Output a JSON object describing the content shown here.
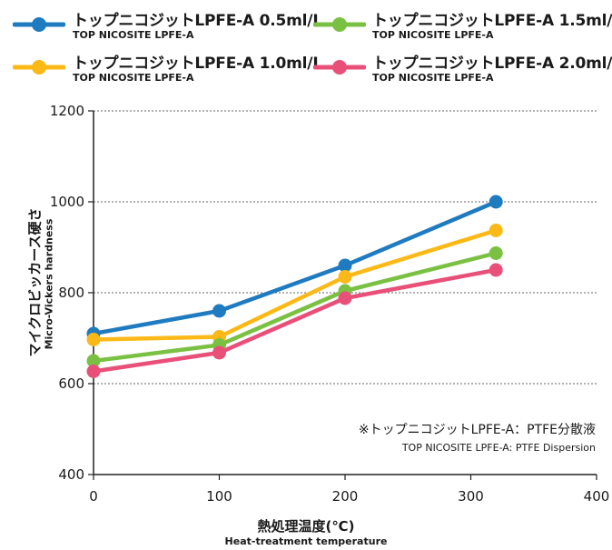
{
  "legend": [
    {
      "title": "トップニコジットLPFE-A 0.5ml/L",
      "subtitle": "TOP NICOSITE LPFE-A",
      "color": "#1f7bc0"
    },
    {
      "title": "トップニコジットLPFE-A 1.5ml/L",
      "subtitle": "TOP NICOSITE LPFE-A",
      "color": "#7ac143"
    },
    {
      "title": "トップニコジットLPFE-A 1.0ml/L",
      "subtitle": "TOP NICOSITE LPFE-A",
      "color": "#fbb917"
    },
    {
      "title": "トップニコジットLPFE-A 2.0ml/L",
      "subtitle": "TOP NICOSITE LPFE-A",
      "color": "#e8507a"
    }
  ],
  "note": {
    "main": "※トップニコジットLPFE-A：PTFE分散液",
    "sub": "TOP NICOSITE LPFE-A: PTFE Dispersion"
  },
  "axes": {
    "x_main": "熱処理温度(℃)",
    "x_sub": "Heat-treatment temperature",
    "y_main": "マイクロビッカース硬さ",
    "y_sub": "Micro-Vickers hardness"
  },
  "chart_data": {
    "type": "line",
    "xlim": [
      0,
      400
    ],
    "ylim": [
      400,
      1200
    ],
    "xticks": [
      0,
      100,
      200,
      300,
      400
    ],
    "yticks": [
      400,
      600,
      800,
      1000,
      1200
    ],
    "grid": true,
    "legend_placement": "top",
    "series": [
      {
        "name": "トップニコジットLPFE-A 0.5ml/L",
        "color": "#1f7bc0",
        "x": [
          0,
          100,
          200,
          320
        ],
        "y": [
          710,
          760,
          860,
          1000
        ]
      },
      {
        "name": "トップニコジットLPFE-A 1.0ml/L",
        "color": "#fbb917",
        "x": [
          0,
          100,
          200,
          320
        ],
        "y": [
          697,
          703,
          835,
          937
        ]
      },
      {
        "name": "トップニコジットLPFE-A 1.5ml/L",
        "color": "#7ac143",
        "x": [
          0,
          100,
          200,
          320
        ],
        "y": [
          650,
          685,
          804,
          887
        ]
      },
      {
        "name": "トップニコジットLPFE-A 2.0ml/L",
        "color": "#e8507a",
        "x": [
          0,
          100,
          200,
          320
        ],
        "y": [
          627,
          668,
          788,
          850
        ]
      }
    ]
  }
}
